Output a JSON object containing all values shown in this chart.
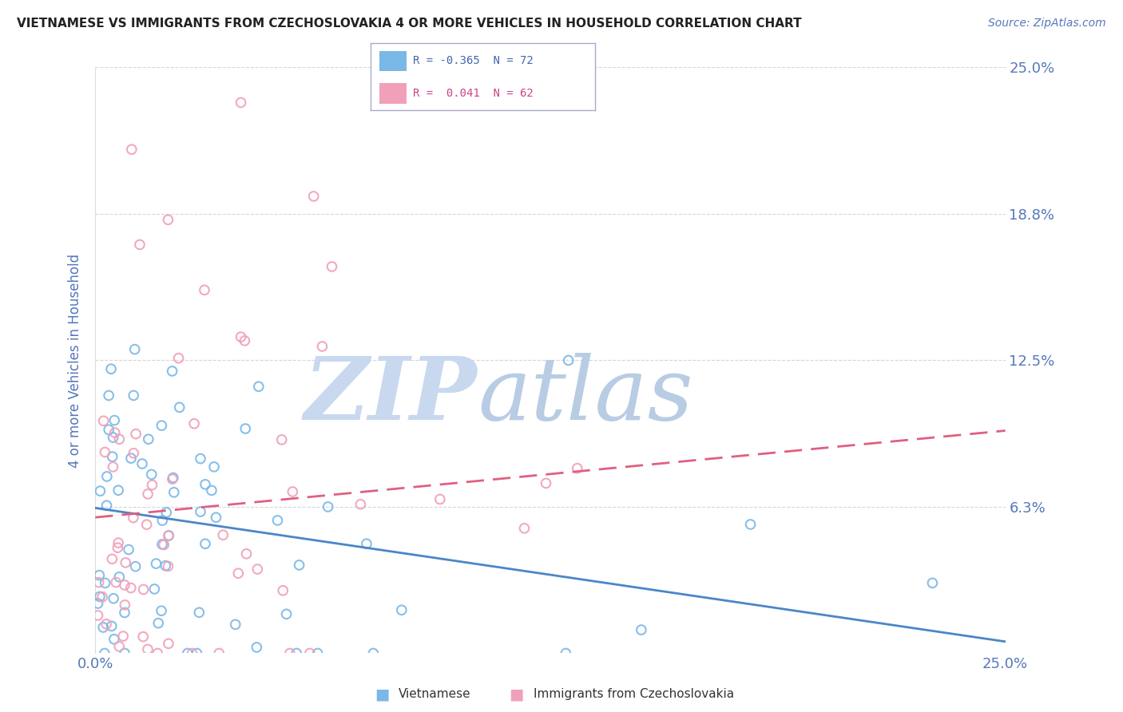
{
  "title": "VIETNAMESE VS IMMIGRANTS FROM CZECHOSLOVAKIA 4 OR MORE VEHICLES IN HOUSEHOLD CORRELATION CHART",
  "source": "Source: ZipAtlas.com",
  "ylabel": "4 or more Vehicles in Household",
  "xlim": [
    0.0,
    0.25
  ],
  "ylim": [
    0.0,
    0.25
  ],
  "xtick_labels": [
    "0.0%",
    "25.0%"
  ],
  "xtick_vals": [
    0.0,
    0.25
  ],
  "ytick_vals": [
    0.0,
    0.0625,
    0.125,
    0.1875,
    0.25
  ],
  "ytick_labels": [
    "",
    "6.3%",
    "12.5%",
    "18.8%",
    "25.0%"
  ],
  "series": [
    {
      "name": "Vietnamese",
      "color": "#7ab8e8",
      "line_color": "#4a86c8",
      "R": -0.365,
      "N": 72
    },
    {
      "name": "Immigrants from Czechoslovakia",
      "color": "#f0a0b8",
      "line_color": "#e06080",
      "R": 0.041,
      "N": 62
    }
  ],
  "watermark_zip": "ZIP",
  "watermark_atlas": "atlas",
  "watermark_color_zip": "#c8d8ee",
  "watermark_color_atlas": "#b8cce4",
  "background_color": "#ffffff",
  "grid_color": "#cccccc",
  "title_color": "#222222",
  "axis_label_color": "#5577bb",
  "tick_label_color": "#5577bb",
  "legend_border_color": "#aaaacc",
  "blue_scatter_seed": 101,
  "pink_scatter_seed": 202
}
